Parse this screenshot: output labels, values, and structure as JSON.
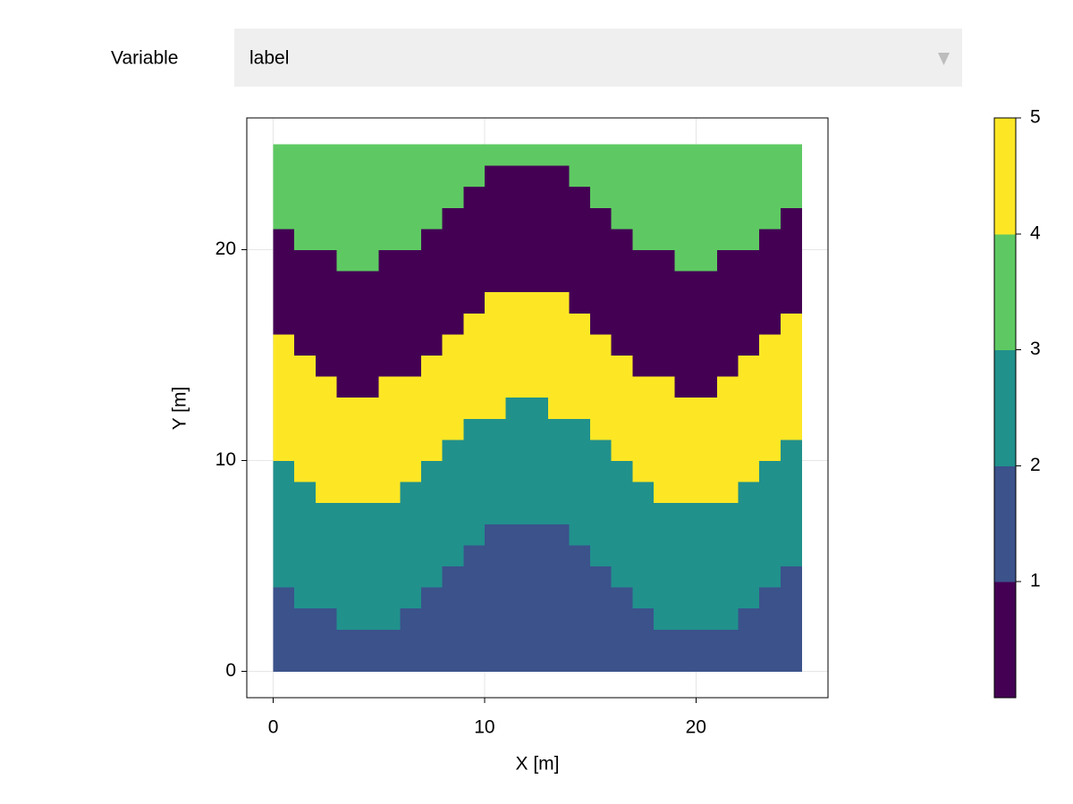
{
  "dropdown": {
    "label": "Variable",
    "value": "label"
  },
  "chart_data": {
    "type": "heatmap",
    "xlabel": "X [m]",
    "ylabel": "Y [m]",
    "x_edges": [
      0,
      1,
      2,
      3,
      4,
      5,
      6,
      7,
      8,
      9,
      10,
      11,
      12,
      13,
      14,
      15,
      16,
      17,
      18,
      19,
      20,
      21,
      22,
      23,
      24,
      25
    ],
    "y_edges": [
      0,
      1,
      2,
      3,
      4,
      5,
      6,
      7,
      8,
      9,
      10,
      11,
      12,
      13,
      14,
      15,
      16,
      17,
      18,
      19,
      20,
      21,
      22,
      23,
      24,
      25
    ],
    "z": [
      [
        1,
        1,
        1,
        1,
        1,
        1,
        1,
        1,
        1,
        1,
        1,
        1,
        1,
        1,
        1,
        1,
        1,
        1,
        1,
        1,
        1,
        1,
        1,
        1,
        1
      ],
      [
        1,
        1,
        1,
        1,
        1,
        1,
        1,
        1,
        1,
        1,
        1,
        1,
        1,
        1,
        1,
        1,
        1,
        1,
        1,
        1,
        1,
        1,
        1,
        1,
        1
      ],
      [
        1,
        1,
        1,
        2,
        2,
        2,
        1,
        1,
        1,
        1,
        1,
        1,
        1,
        1,
        1,
        1,
        1,
        1,
        2,
        2,
        2,
        2,
        1,
        1,
        1
      ],
      [
        1,
        2,
        2,
        2,
        2,
        2,
        2,
        1,
        1,
        1,
        1,
        1,
        1,
        1,
        1,
        1,
        1,
        2,
        2,
        2,
        2,
        2,
        2,
        1,
        1
      ],
      [
        2,
        2,
        2,
        2,
        2,
        2,
        2,
        2,
        1,
        1,
        1,
        1,
        1,
        1,
        1,
        1,
        2,
        2,
        2,
        2,
        2,
        2,
        2,
        2,
        1
      ],
      [
        2,
        2,
        2,
        2,
        2,
        2,
        2,
        2,
        2,
        1,
        1,
        1,
        1,
        1,
        1,
        2,
        2,
        2,
        2,
        2,
        2,
        2,
        2,
        2,
        2
      ],
      [
        2,
        2,
        2,
        2,
        2,
        2,
        2,
        2,
        2,
        2,
        1,
        1,
        1,
        1,
        2,
        2,
        2,
        2,
        2,
        2,
        2,
        2,
        2,
        2,
        2
      ],
      [
        2,
        2,
        2,
        2,
        2,
        2,
        2,
        2,
        2,
        2,
        2,
        2,
        2,
        2,
        2,
        2,
        2,
        2,
        2,
        2,
        2,
        2,
        2,
        2,
        2
      ],
      [
        2,
        2,
        4,
        4,
        4,
        4,
        2,
        2,
        2,
        2,
        2,
        2,
        2,
        2,
        2,
        2,
        2,
        2,
        4,
        4,
        4,
        4,
        2,
        2,
        2
      ],
      [
        2,
        4,
        4,
        4,
        4,
        4,
        4,
        2,
        2,
        2,
        2,
        2,
        2,
        2,
        2,
        2,
        2,
        4,
        4,
        4,
        4,
        4,
        4,
        2,
        2
      ],
      [
        4,
        4,
        4,
        4,
        4,
        4,
        4,
        4,
        2,
        2,
        2,
        2,
        2,
        2,
        2,
        2,
        4,
        4,
        4,
        4,
        4,
        4,
        4,
        4,
        2
      ],
      [
        4,
        4,
        4,
        4,
        4,
        4,
        4,
        4,
        4,
        2,
        2,
        2,
        2,
        2,
        2,
        4,
        4,
        4,
        4,
        4,
        4,
        4,
        4,
        4,
        4
      ],
      [
        4,
        4,
        4,
        4,
        4,
        4,
        4,
        4,
        4,
        4,
        4,
        2,
        2,
        4,
        4,
        4,
        4,
        4,
        4,
        4,
        4,
        4,
        4,
        4,
        4
      ],
      [
        4,
        4,
        4,
        0,
        0,
        4,
        4,
        4,
        4,
        4,
        4,
        4,
        4,
        4,
        4,
        4,
        4,
        4,
        4,
        0,
        0,
        4,
        4,
        4,
        4
      ],
      [
        4,
        4,
        0,
        0,
        0,
        0,
        0,
        4,
        4,
        4,
        4,
        4,
        4,
        4,
        4,
        4,
        4,
        0,
        0,
        0,
        0,
        0,
        4,
        4,
        4
      ],
      [
        4,
        0,
        0,
        0,
        0,
        0,
        0,
        0,
        4,
        4,
        4,
        4,
        4,
        4,
        4,
        4,
        0,
        0,
        0,
        0,
        0,
        0,
        0,
        4,
        4
      ],
      [
        0,
        0,
        0,
        0,
        0,
        0,
        0,
        0,
        0,
        4,
        4,
        4,
        4,
        4,
        4,
        0,
        0,
        0,
        0,
        0,
        0,
        0,
        0,
        0,
        4
      ],
      [
        0,
        0,
        0,
        0,
        0,
        0,
        0,
        0,
        0,
        0,
        4,
        4,
        4,
        4,
        0,
        0,
        0,
        0,
        0,
        0,
        0,
        0,
        0,
        0,
        0
      ],
      [
        0,
        0,
        0,
        0,
        0,
        0,
        0,
        0,
        0,
        0,
        0,
        0,
        0,
        0,
        0,
        0,
        0,
        0,
        0,
        0,
        0,
        0,
        0,
        0,
        0
      ],
      [
        0,
        0,
        0,
        3,
        3,
        0,
        0,
        0,
        0,
        0,
        0,
        0,
        0,
        0,
        0,
        0,
        0,
        0,
        0,
        3,
        3,
        0,
        0,
        0,
        0
      ],
      [
        0,
        3,
        3,
        3,
        3,
        3,
        3,
        0,
        0,
        0,
        0,
        0,
        0,
        0,
        0,
        0,
        0,
        3,
        3,
        3,
        3,
        3,
        3,
        0,
        0
      ],
      [
        3,
        3,
        3,
        3,
        3,
        3,
        3,
        3,
        0,
        0,
        0,
        0,
        0,
        0,
        0,
        0,
        3,
        3,
        3,
        3,
        3,
        3,
        3,
        3,
        0
      ],
      [
        3,
        3,
        3,
        3,
        3,
        3,
        3,
        3,
        3,
        0,
        0,
        0,
        0,
        0,
        0,
        3,
        3,
        3,
        3,
        3,
        3,
        3,
        3,
        3,
        3
      ],
      [
        3,
        3,
        3,
        3,
        3,
        3,
        3,
        3,
        3,
        3,
        0,
        0,
        0,
        0,
        3,
        3,
        3,
        3,
        3,
        3,
        3,
        3,
        3,
        3,
        3
      ],
      [
        3,
        3,
        3,
        3,
        3,
        3,
        3,
        3,
        3,
        3,
        3,
        3,
        3,
        3,
        3,
        3,
        3,
        3,
        3,
        3,
        3,
        3,
        3,
        3,
        3
      ]
    ],
    "xlim": [
      -1.25,
      26.25
    ],
    "ylim": [
      -1.25,
      26.25
    ],
    "xticks": [
      0,
      10,
      20
    ],
    "yticks": [
      0,
      10,
      20
    ],
    "grid": true,
    "colorbar": {
      "colors": [
        "#440154",
        "#3b528b",
        "#21918c",
        "#5ec962",
        "#fde725"
      ],
      "limits": [
        0,
        5
      ],
      "ticks": [
        1,
        2,
        3,
        4,
        5
      ]
    }
  }
}
